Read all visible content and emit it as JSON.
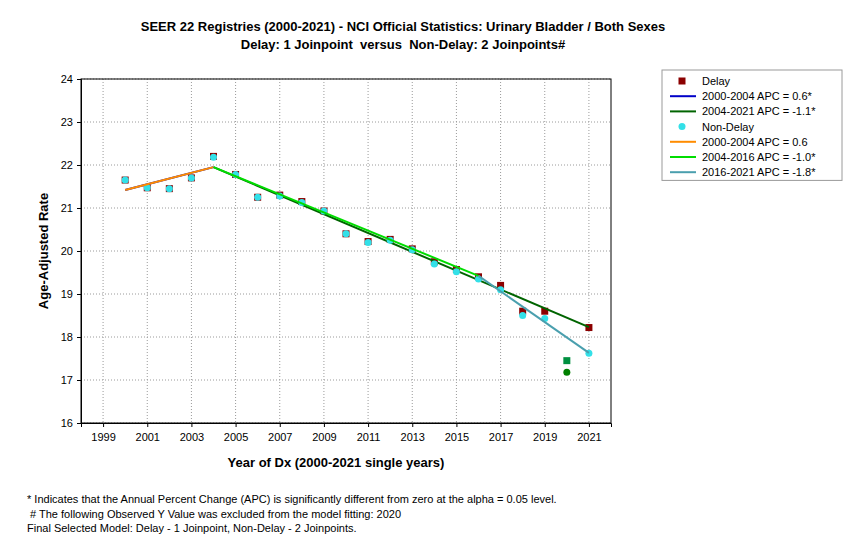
{
  "chart_data": {
    "type": "line",
    "title": "SEER 22 Registries (2000-2021) - NCI Official Statistics: Urinary Bladder / Both Sexes",
    "subtitle": "Delay: 1 Joinpoint  versus  Non-Delay: 2 Joinpoints#",
    "x_label": "Year of Dx (2000-2021 single years)",
    "y_label": "Age-Adjusted Rate",
    "xlim": [
      1998,
      2022
    ],
    "xticks": [
      1999,
      2001,
      2003,
      2005,
      2007,
      2009,
      2011,
      2013,
      2015,
      2017,
      2019,
      2021
    ],
    "ylim": [
      16,
      24
    ],
    "yticks": [
      16,
      17,
      18,
      19,
      20,
      21,
      22,
      23,
      24
    ],
    "grid": true,
    "legend": "right",
    "series": [
      {
        "name": "Delay",
        "type": "scatter",
        "marker": "square",
        "color": "#8b0000",
        "x": [
          2000,
          2001,
          2002,
          2003,
          2004,
          2005,
          2006,
          2007,
          2008,
          2009,
          2010,
          2011,
          2012,
          2013,
          2014,
          2015,
          2016,
          2017,
          2018,
          2019,
          2020,
          2021
        ],
        "values": [
          21.65,
          21.47,
          21.45,
          21.7,
          22.2,
          21.78,
          21.25,
          21.3,
          21.15,
          20.93,
          20.4,
          20.22,
          20.27,
          20.05,
          19.75,
          19.57,
          19.4,
          19.2,
          18.6,
          18.6,
          17.45,
          18.22
        ],
        "colors": [
          "#8b0000",
          "#8b0000",
          "#8b0000",
          "#8b0000",
          "#8b0000",
          "#8b0000",
          "#8b0000",
          "#8b0000",
          "#8b0000",
          "#8b0000",
          "#8b0000",
          "#8b0000",
          "#8b0000",
          "#8b0000",
          "#8b0000",
          "#8b0000",
          "#8b0000",
          "#8b0000",
          "#8b0000",
          "#8b0000",
          "#009040",
          "#8b0000"
        ]
      },
      {
        "name": "2000-2004 APC = 0.6*",
        "type": "line",
        "color": "#0000c8",
        "x": [
          2000,
          2004
        ],
        "values": [
          21.42,
          21.95
        ]
      },
      {
        "name": "2004-2021 APC = -1.1*",
        "type": "line",
        "color": "#006400",
        "x": [
          2004,
          2021
        ],
        "values": [
          21.95,
          18.23
        ]
      },
      {
        "name": "Non-Delay",
        "type": "scatter",
        "marker": "circle",
        "color": "#33e0e8",
        "x": [
          2000,
          2001,
          2002,
          2003,
          2004,
          2005,
          2006,
          2007,
          2008,
          2009,
          2010,
          2011,
          2012,
          2013,
          2014,
          2015,
          2016,
          2017,
          2018,
          2019,
          2020,
          2021
        ],
        "values": [
          21.65,
          21.47,
          21.45,
          21.7,
          22.18,
          21.78,
          21.25,
          21.28,
          21.13,
          20.93,
          20.4,
          20.2,
          20.25,
          20.03,
          19.7,
          19.52,
          19.35,
          19.1,
          18.5,
          18.43,
          17.18,
          17.62
        ],
        "colors": [
          "#33e0e8",
          "#33e0e8",
          "#33e0e8",
          "#33e0e8",
          "#33e0e8",
          "#33e0e8",
          "#33e0e8",
          "#33e0e8",
          "#33e0e8",
          "#33e0e8",
          "#33e0e8",
          "#33e0e8",
          "#33e0e8",
          "#33e0e8",
          "#33e0e8",
          "#33e0e8",
          "#33e0e8",
          "#33e0e8",
          "#33e0e8",
          "#33e0e8",
          "#008000",
          "#33e0e8"
        ]
      },
      {
        "name": "2000-2004 APC = 0.6",
        "type": "line",
        "color": "#ff8c00",
        "x": [
          2000,
          2004
        ],
        "values": [
          21.42,
          21.95
        ]
      },
      {
        "name": "2004-2016 APC = -1.0*",
        "type": "line",
        "color": "#00dd00",
        "x": [
          2004,
          2016
        ],
        "values": [
          21.95,
          19.42
        ]
      },
      {
        "name": "2016-2021 APC = -1.8*",
        "type": "line",
        "color": "#4a9fae",
        "x": [
          2016,
          2021
        ],
        "values": [
          19.42,
          17.63
        ]
      }
    ],
    "notes": [
      "* Indicates that the Annual Percent Change (APC) is significantly different from zero at the alpha = 0.05 level.",
      " # The following Observed Y Value was excluded from the model fitting: 2020",
      "Final Selected Model: Delay - 1 Joinpoint, Non-Delay - 2 Joinpoints."
    ]
  }
}
